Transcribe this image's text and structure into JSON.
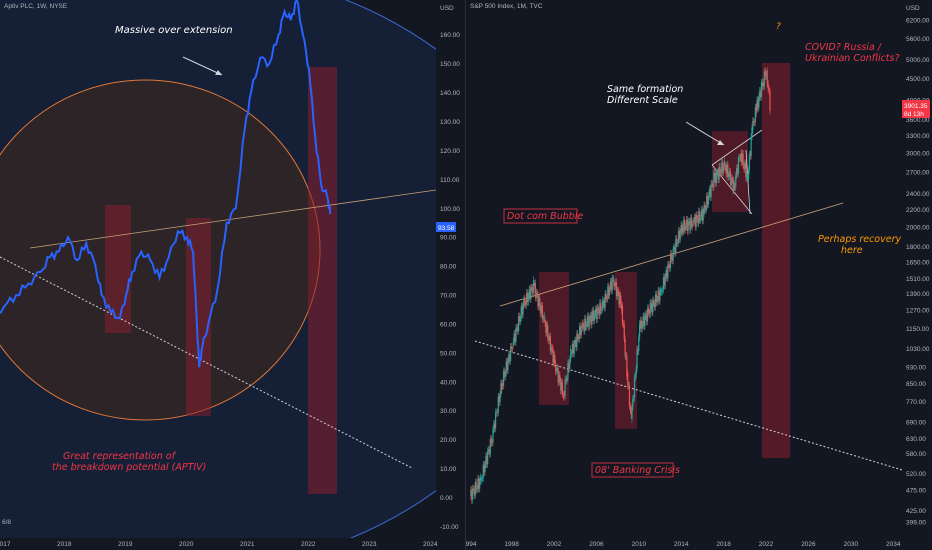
{
  "left": {
    "title": "Aptiv PLC, 1W, NYSE",
    "currency": "USD",
    "price_tag": "93.58",
    "annotations": {
      "overextension": "Massive over extension",
      "breakdown_line1": "Great representation of",
      "breakdown_line2": "the breakdown potential (APTIV)"
    },
    "bottom_left": "6/8"
  },
  "right": {
    "title": "S&P 500 Index, 1M, TVC",
    "currency": "USD",
    "price_tag_1": "3901.35",
    "price_tag_2": "8d 13h",
    "annotations": {
      "question": "?",
      "covid_line1": "COVID? Russia /",
      "covid_line2": "Ukrainian Conflicts?",
      "same_line1": "Same formation",
      "same_line2": "Different Scale",
      "dotcom": "Dot com Bubble",
      "recovery_line1": "Perhaps recovery",
      "recovery_line2": "here",
      "banking": "08' Banking Crisis"
    }
  },
  "colors": {
    "background": "#131722",
    "price_line": "#2962ff",
    "candle_up": "#26a69a",
    "candle_down": "#ef5350",
    "annotation_red": "#f23645",
    "annotation_orange": "#ff9800",
    "box_fill": "#8b1e2e"
  },
  "chart_data": [
    {
      "type": "line",
      "title": "Aptiv PLC, 1W, NYSE",
      "x_ticks": [
        "2017",
        "2018",
        "2019",
        "2020",
        "2021",
        "2022",
        "2023",
        "2024"
      ],
      "y_ticks": [
        -10,
        0,
        10,
        20,
        30,
        40,
        50,
        60,
        70,
        80,
        90,
        100,
        110,
        120,
        130,
        140,
        150,
        160
      ],
      "ylim": [
        -14,
        172
      ],
      "series": [
        {
          "x": [
            2016.55,
            2016.8,
            2017.0,
            2017.2,
            2017.4,
            2017.6,
            2017.75,
            2017.9,
            2018.05,
            2018.2,
            2018.35,
            2018.5,
            2018.6,
            2018.75,
            2018.9,
            2019.0,
            2019.1,
            2019.25,
            2019.4,
            2019.55,
            2019.7,
            2019.85,
            2020.0,
            2020.1,
            2020.15,
            2020.2,
            2020.25,
            2020.35,
            2020.5,
            2020.65,
            2020.8,
            2020.95,
            2021.05,
            2021.2,
            2021.35,
            2021.5,
            2021.6,
            2021.7,
            2021.8,
            2021.9,
            2022.0,
            2022.1,
            2022.2,
            2022.3,
            2022.35
          ],
          "values": [
            58,
            62,
            66,
            70,
            74,
            78,
            83,
            85,
            90,
            82,
            88,
            80,
            70,
            64,
            62,
            70,
            78,
            85,
            82,
            76,
            83,
            92,
            90,
            85,
            65,
            45,
            52,
            60,
            72,
            95,
            100,
            128,
            140,
            152,
            150,
            160,
            168,
            165,
            172,
            160,
            148,
            125,
            108,
            104,
            98
          ]
        }
      ]
    },
    {
      "type": "bar",
      "title": "S&P 500 Index, 1M, TVC",
      "x_ticks": [
        "1994",
        "1998",
        "2002",
        "2006",
        "2010",
        "2014",
        "2018",
        "2022",
        "2026",
        "2030",
        "2034"
      ],
      "y_ticks": [
        399,
        425,
        475,
        520,
        580,
        630,
        690,
        770,
        850,
        930,
        1030,
        1150,
        1270,
        1390,
        1510,
        1650,
        1800,
        2000,
        2200,
        2400,
        2700,
        3000,
        3300,
        3600,
        4000,
        4500,
        5000,
        5600,
        6200
      ],
      "y_scale": "log",
      "series": [
        {
          "x": [
            1994.0,
            1995.0,
            1996.0,
            1997.0,
            1998.0,
            1999.0,
            2000.0,
            2001.0,
            2002.0,
            2002.8,
            2003.5,
            2004.5,
            2005.5,
            2006.5,
            2007.5,
            2008.3,
            2008.8,
            2009.2,
            2010.0,
            2011.0,
            2012.0,
            2013.0,
            2014.0,
            2015.0,
            2016.0,
            2017.0,
            2018.0,
            2018.9,
            2019.5,
            2020.2,
            2020.6,
            2021.0,
            2021.5,
            2021.95,
            2022.3
          ],
          "values": [
            460,
            500,
            620,
            850,
            1050,
            1300,
            1450,
            1200,
            950,
            800,
            1000,
            1150,
            1220,
            1300,
            1500,
            1300,
            900,
            700,
            1150,
            1280,
            1400,
            1700,
            2000,
            2050,
            2150,
            2600,
            2800,
            2500,
            3000,
            2600,
            3400,
            3800,
            4300,
            4700,
            3900
          ]
        }
      ]
    }
  ]
}
